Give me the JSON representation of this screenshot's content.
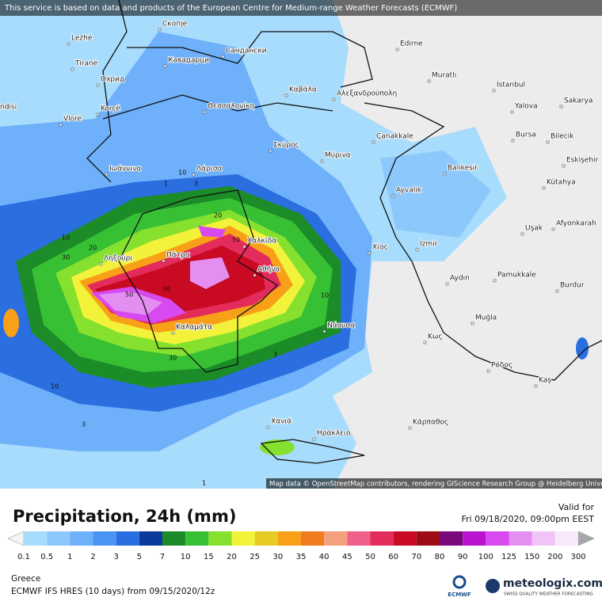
{
  "header": {
    "notice": "This service is based on data and products of the European Centre for Medium-range Weather Forecasts (ECMWF)"
  },
  "map": {
    "attribution": "Map data © OpenStreetMap contributors, rendering GIScience Research Group @ Heidelberg University",
    "cities": [
      "Скопје",
      "Lezhë",
      "Tiranë",
      "Кавадарци",
      "Сандански",
      "Охрид",
      "Korçë",
      "Vlorë",
      "Θεσσαλονίκη",
      "Καβάλα",
      "Αλεξανδρούπολη",
      "Edirne",
      "Muratlı",
      "İstanbul",
      "Yalova",
      "Sakarya",
      "Bursa",
      "Bilecik",
      "Eskişehir",
      "Kütahya",
      "Çanakkale",
      "Balıkesir",
      "Ayvalık",
      "Σκύρος",
      "Μύρινα",
      "Λάρισα",
      "Ιωάννινα",
      "Χαλκίδα",
      "Πάτρα",
      "Ληξούρι",
      "Αθήνα",
      "Καλαμάτα",
      "Νάουσα",
      "Χίος",
      "İzmir",
      "Aydın",
      "Uşak",
      "Afyonkarah",
      "Pamukkale",
      "Burdur",
      "Muğla",
      "Κως",
      "Ρόδος",
      "Kaş",
      "Χανιά",
      "Ηράκλειο",
      "Κάρπαθος",
      "ndisi"
    ],
    "contour_labels": [
      10,
      20,
      30,
      30,
      50,
      50,
      20,
      10,
      3,
      10,
      3,
      1,
      30,
      10,
      3,
      1
    ]
  },
  "legend": {
    "title": "Precipitation, 24h (mm)",
    "valid_label": "Valid for",
    "valid_time": "Fri 09/18/2020, 09:00pm EEST",
    "values": [
      0.1,
      0.5,
      1,
      2,
      3,
      5,
      7,
      10,
      15,
      20,
      25,
      30,
      35,
      40,
      45,
      50,
      60,
      70,
      80,
      90,
      100,
      125,
      150,
      200,
      300
    ],
    "colors": [
      "#a8dcfc",
      "#8cc8fc",
      "#6eb0fa",
      "#4a94f4",
      "#2a6ee0",
      "#0c3a9c",
      "#1c8c28",
      "#38c034",
      "#86e02e",
      "#f2f23a",
      "#e6cc20",
      "#f8a018",
      "#f07c22",
      "#f4a07c",
      "#f0608a",
      "#e42c5c",
      "#c80a22",
      "#9c0c14",
      "#7a0a7c",
      "#b814d0",
      "#d84af0",
      "#e48ef2",
      "#f0c4f6",
      "#f8e8fc"
    ]
  },
  "footer": {
    "region": "Greece",
    "model": "ECMWF IFS HRES (10 days) from 09/15/2020/12z",
    "ecmwf": "ECMWF",
    "brand": "meteologix.com",
    "tagline": "SWISS QUALITY WEATHER FORECASTING"
  }
}
